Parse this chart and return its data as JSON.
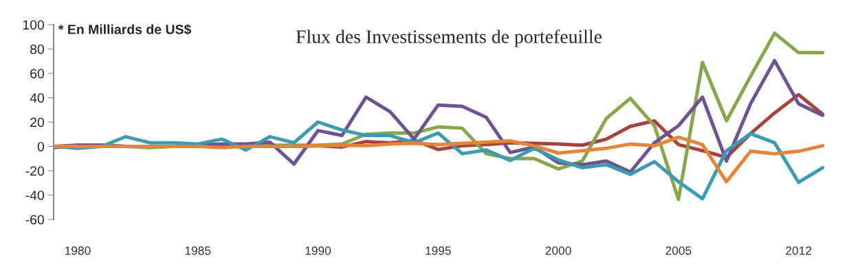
{
  "chart_data": {
    "type": "line",
    "title": "Flux des Investissements de portefeuille",
    "annotations": [
      "* En Milliards de US$"
    ],
    "categories": [
      null,
      "1980",
      null,
      null,
      null,
      null,
      "1985",
      null,
      null,
      null,
      null,
      "1990",
      null,
      null,
      null,
      null,
      "1995",
      null,
      null,
      null,
      null,
      "2000",
      null,
      null,
      null,
      null,
      "2005",
      null,
      null,
      null,
      null,
      "2012",
      null
    ],
    "series": [
      {
        "color": "#a9423f",
        "values": [
          0,
          1,
          1,
          0,
          0,
          0,
          0,
          1,
          1,
          1,
          0,
          0.5,
          -0.5,
          4,
          3,
          5,
          -2.5,
          0.5,
          1.5,
          3,
          2.5,
          2,
          1,
          6,
          16.5,
          21,
          1.5,
          -3.5,
          -9,
          10.5,
          27.5,
          42.5,
          26.5
        ]
      },
      {
        "color": "#86a84a",
        "values": [
          null,
          null,
          0,
          0,
          -1,
          0,
          0,
          1,
          1,
          1,
          1,
          1,
          2,
          10,
          11,
          11,
          16,
          15,
          -6,
          -10,
          -10,
          -18.5,
          -12,
          23,
          39.5,
          17,
          -43.5,
          69,
          21,
          57.5,
          93,
          77,
          77
        ]
      },
      {
        "color": "#6f5391",
        "values": [
          -1,
          1,
          1,
          0,
          0,
          0,
          1,
          2,
          2,
          3.5,
          -14.5,
          13,
          9,
          40.5,
          28.5,
          6,
          34,
          33,
          24,
          -5,
          -0.5,
          -13.5,
          -15,
          -12,
          -21,
          3,
          17,
          40.5,
          -12,
          35,
          70.5,
          35,
          25.5
        ]
      },
      {
        "color": "#3b9bb3",
        "values": [
          0,
          -1.5,
          0,
          8,
          3,
          3,
          2,
          6,
          -3,
          8,
          3,
          20,
          13.5,
          9,
          9,
          3,
          11,
          -6,
          -3,
          -11.5,
          -1.5,
          -11,
          -17.5,
          -15,
          -23,
          -12.5,
          -29,
          -43,
          -3.5,
          10.5,
          3,
          -29.5,
          -17.5
        ]
      },
      {
        "color": "#e6843a",
        "values": [
          0,
          0,
          0,
          0,
          0,
          0,
          0,
          -1,
          0,
          0,
          0,
          0.5,
          1,
          0.5,
          2,
          2.5,
          1.5,
          2.5,
          3.5,
          4.5,
          0.5,
          -5.5,
          -3.5,
          -1.5,
          2,
          0.5,
          7.5,
          1.5,
          -29,
          -4,
          -6,
          -4,
          0.5
        ]
      }
    ],
    "ylim": [
      -60,
      100
    ],
    "yticks": [
      -60,
      -40,
      -20,
      0,
      20,
      40,
      60,
      80,
      100
    ],
    "grid": false,
    "marker": "none",
    "line_style": "solid"
  }
}
